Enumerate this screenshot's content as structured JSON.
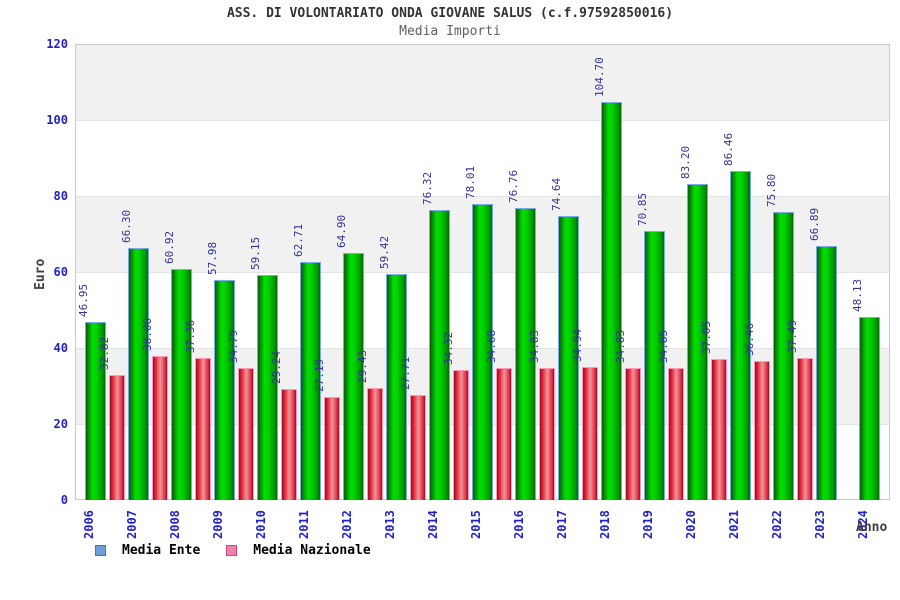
{
  "chart_data": {
    "type": "bar",
    "title": "ASS. DI VOLONTARIATO ONDA GIOVANE SALUS (c.f.97592850016)",
    "subtitle": "Media Importi",
    "xlabel": "Anno",
    "ylabel": "Euro",
    "ylim": [
      0,
      120
    ],
    "ytick_interval": 20,
    "yticks": [
      0,
      20,
      40,
      60,
      80,
      100,
      120
    ],
    "grid": "alternating horizontal bands, light gray / white, every 20 units",
    "legend_position": "bottom-left",
    "value_labels": "rotated 90deg above each bar, two decimals",
    "tick_label_color": "#2222cc",
    "value_label_color": "#333399",
    "categories": [
      "2006",
      "2007",
      "2008",
      "2009",
      "2010",
      "2011",
      "2012",
      "2013",
      "2014",
      "2015",
      "2016",
      "2017",
      "2018",
      "2019",
      "2020",
      "2021",
      "2022",
      "2023",
      "2024"
    ],
    "series": [
      {
        "name": "Media Ente",
        "values": [
          46.95,
          66.3,
          60.92,
          57.98,
          59.15,
          62.71,
          64.9,
          59.42,
          76.32,
          78.01,
          76.76,
          74.64,
          104.7,
          70.85,
          83.2,
          86.46,
          75.8,
          66.89,
          48.13
        ],
        "bar_border": "#7aaae8",
        "bar_gradient": [
          [
            "#0a5c0a",
            0
          ],
          [
            "#00e000",
            35
          ],
          [
            "#00d000",
            55
          ],
          [
            "#009400",
            88
          ],
          [
            "#006600",
            100
          ]
        ],
        "legend_fill": "#6f9fd8",
        "legend_border": "#4a76a8"
      },
      {
        "name": "Media Nazionale",
        "values": [
          32.82,
          38.0,
          37.36,
          34.79,
          29.24,
          27.19,
          29.43,
          27.71,
          34.32,
          34.68,
          34.83,
          34.94,
          34.83,
          34.85,
          37.05,
          36.46,
          37.49,
          null,
          null
        ],
        "bar_border": "#ff9ab8",
        "bar_gradient": [
          [
            "#8f0f2a",
            0
          ],
          [
            "#e51f37",
            18
          ],
          [
            "#ef9595",
            52
          ],
          [
            "#e03048",
            85
          ],
          [
            "#8f0f2a",
            100
          ]
        ],
        "legend_fill": "#ef7fae",
        "legend_border": "#c04a7a"
      }
    ]
  }
}
